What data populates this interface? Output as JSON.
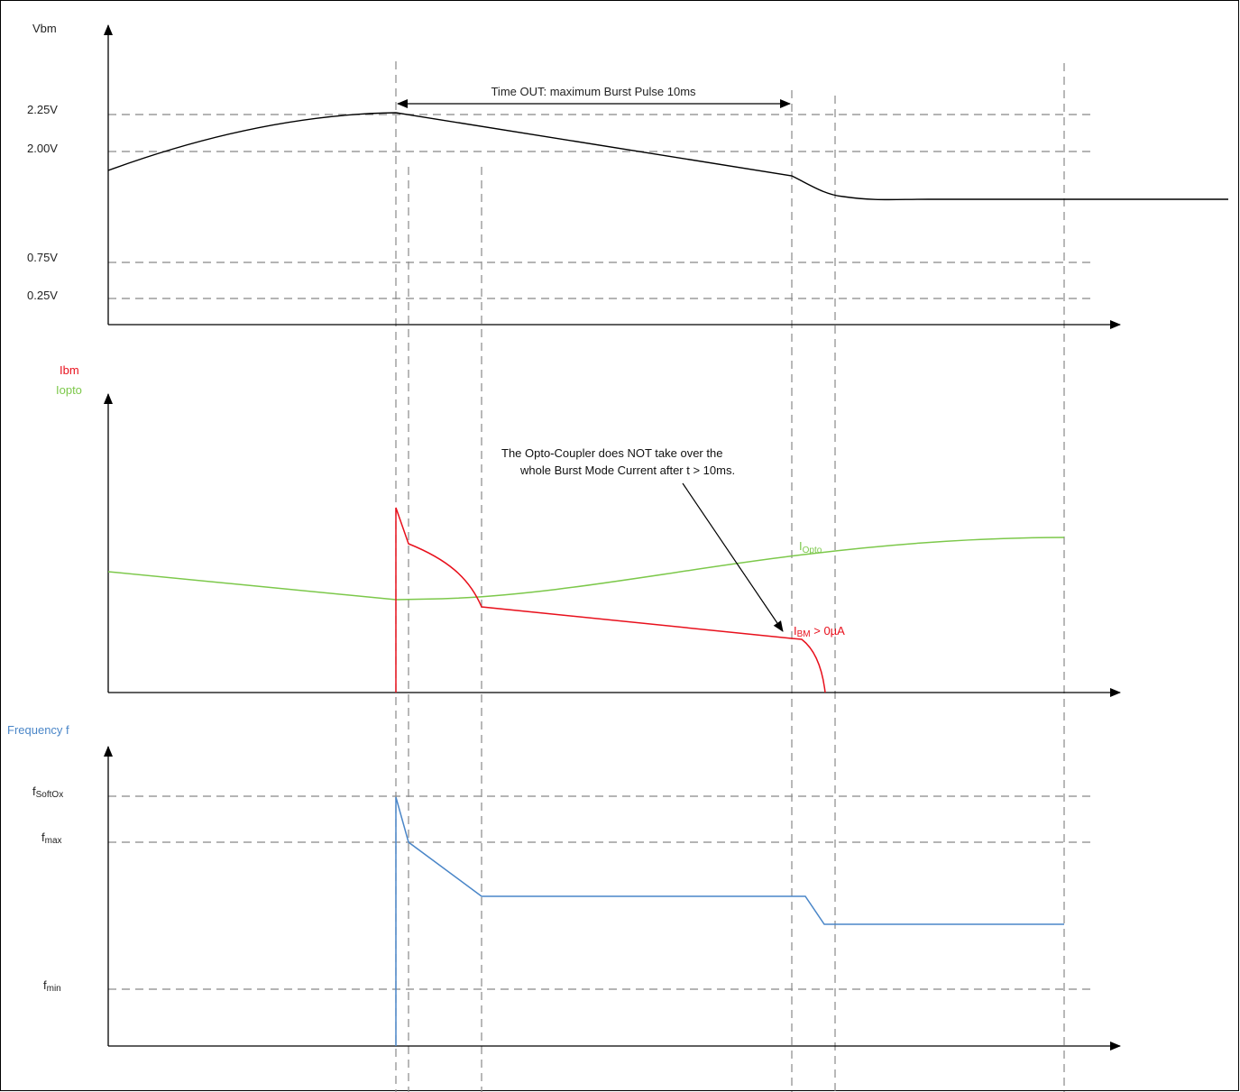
{
  "colors": {
    "vbm": "#000000",
    "ibm": "#e8101c",
    "iopto": "#7cc84a",
    "freq": "#4a86c8",
    "guide": "#888888",
    "axis": "#000000"
  },
  "panel_vbm": {
    "axis_label": "Vbm",
    "levels": [
      "2.25V",
      "2.00V",
      "0.75V",
      "0.25V"
    ],
    "timeout_label": "Time OUT: maximum Burst Pulse 10ms"
  },
  "panel_current": {
    "axis_label_ibm": "Ibm",
    "axis_label_iopto": "Iopto",
    "iopto_tag_main": "I",
    "iopto_tag_sub": "Opto",
    "ibm_tag_main": "I",
    "ibm_tag_sub": "BM",
    "ibm_tag_rest": " > 0µA",
    "note_line1": "The Opto-Coupler does NOT take over the",
    "note_line2": "whole Burst Mode Current after t > 10ms."
  },
  "panel_freq": {
    "axis_label": "Frequency f",
    "levels": [
      {
        "main": "f",
        "sub": "SoftOx"
      },
      {
        "main": "f",
        "sub": "max"
      },
      {
        "main": "f",
        "sub": "min"
      }
    ]
  }
}
